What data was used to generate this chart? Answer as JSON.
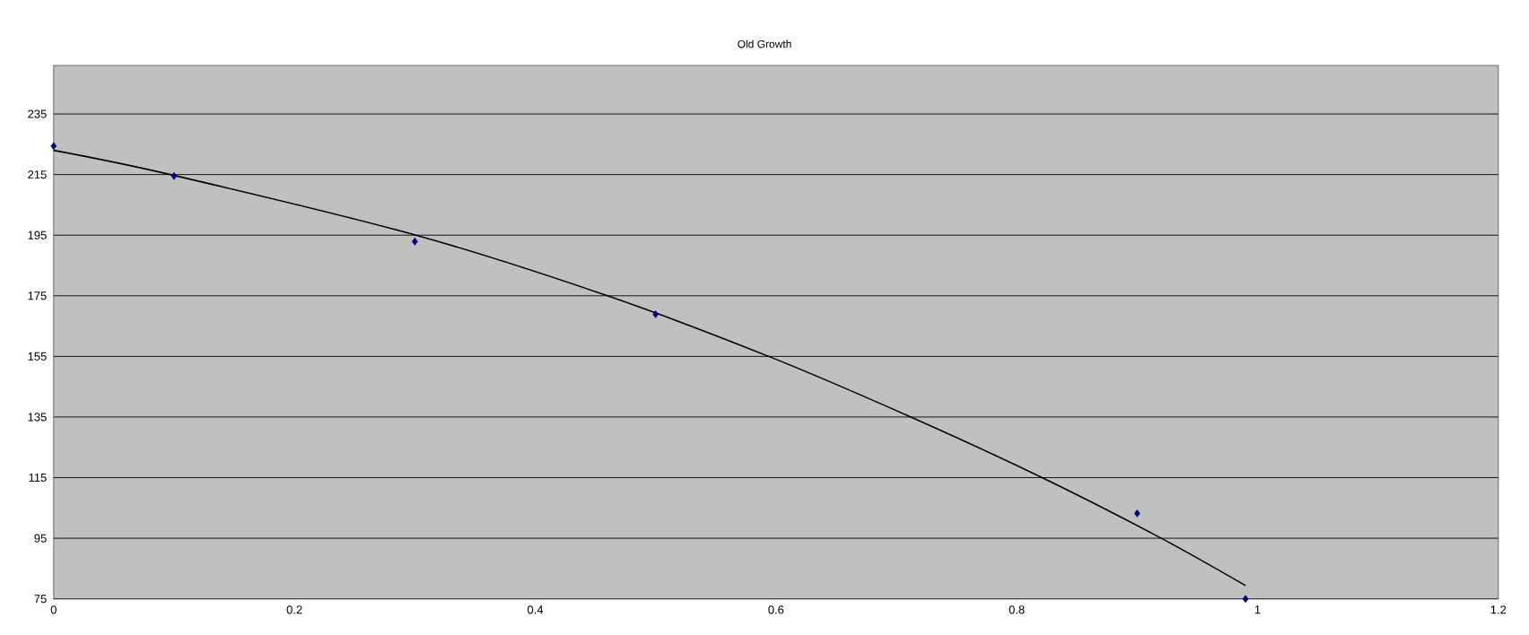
{
  "chart_data": {
    "type": "scatter",
    "title": "Old Growth",
    "xlim": [
      0,
      1.2
    ],
    "xticks": [
      0,
      0.2,
      0.4,
      0.6,
      0.8,
      1,
      1.2
    ],
    "ylim": [
      75,
      251
    ],
    "yticks": [
      75,
      95,
      115,
      135,
      155,
      175,
      195,
      215,
      235
    ],
    "grid": "y",
    "marker": "diamond",
    "series": [
      {
        "color": "#000080",
        "x": [
          0,
          0.1,
          0.3,
          0.5,
          0.9,
          0.99
        ],
        "values": [
          224.4,
          214.5,
          192.9,
          168.9,
          103.2,
          75
        ]
      },
      {
        "type": "line",
        "color": "#000000",
        "marker": "none",
        "line_style": "solid",
        "x": [
          0,
          0.097,
          0.301,
          0.46,
          0.594,
          0.712,
          0.821,
          0.92,
          0.99
        ],
        "values": [
          223,
          215,
          195,
          175,
          155,
          135,
          115,
          95,
          79.4
        ]
      }
    ]
  }
}
